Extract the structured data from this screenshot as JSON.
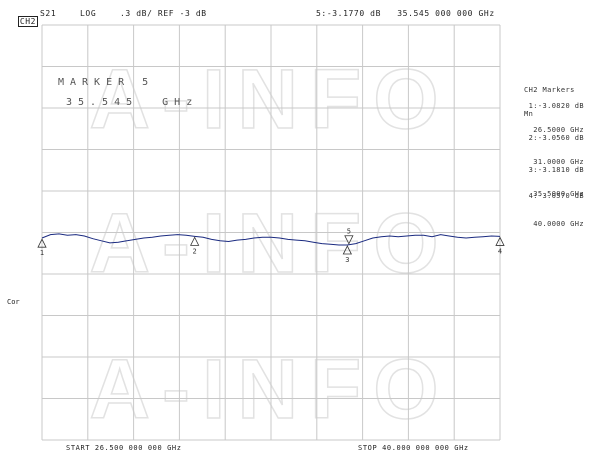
{
  "header": {
    "channel": "CH2",
    "param": "S21",
    "format": "LOG",
    "scale": ".3 dB/ REF -3 dB",
    "marker_readout": "5:-3.1770 dB   35.545 000 000 GHz"
  },
  "marker_label": {
    "title": "MARKER 5",
    "freq": "35.545  GHz"
  },
  "side_panel": {
    "title1": "CH2 Markers",
    "title2": "Mn",
    "markers": [
      {
        "line1": "1:-3.0820 dB",
        "line2": "26.5000 GHz"
      },
      {
        "line1": "2:-3.0560 dB",
        "line2": "31.0000 GHz"
      },
      {
        "line1": "3:-3.1810 dB",
        "line2": "35.5000 GHz"
      },
      {
        "line1": "4:-3.0570 dB",
        "line2": "40.0000 GHz"
      }
    ]
  },
  "left_label": "Cor",
  "footer": {
    "start": "START 26.500 000 000 GHz",
    "stop": "STOP 40.000 000 000 GHz"
  },
  "watermark": "A-INFO",
  "colors": {
    "trace": "#1a2a80",
    "grid": "#c8c8c8",
    "watermark": "#e2e2e2"
  },
  "chart_data": {
    "type": "line",
    "xlim": [
      26.5,
      40.0
    ],
    "ylim": [
      -6.0,
      0.0
    ],
    "ref_db": -3.0,
    "scale_db_per_div": 0.3,
    "grid": true,
    "x_unit": "GHz",
    "y_unit": "dB",
    "series": [
      {
        "x": [
          26.5,
          26.75,
          27.0,
          27.25,
          27.5,
          27.75,
          28.0,
          28.25,
          28.5,
          28.75,
          29.0,
          29.25,
          29.5,
          29.75,
          30.0,
          30.25,
          30.5,
          30.75,
          31.0,
          31.25,
          31.5,
          31.75,
          32.0,
          32.25,
          32.5,
          32.75,
          33.0,
          33.25,
          33.5,
          33.75,
          34.0,
          34.25,
          34.5,
          34.75,
          35.0,
          35.25,
          35.5,
          35.75,
          36.0,
          36.25,
          36.5,
          36.75,
          37.0,
          37.25,
          37.5,
          37.75,
          38.0,
          38.25,
          38.5,
          38.75,
          39.0,
          39.25,
          39.5,
          39.75,
          40.0
        ],
        "y": [
          -3.08,
          -3.03,
          -3.02,
          -3.04,
          -3.03,
          -3.05,
          -3.09,
          -3.12,
          -3.15,
          -3.14,
          -3.12,
          -3.1,
          -3.08,
          -3.07,
          -3.05,
          -3.04,
          -3.03,
          -3.04,
          -3.056,
          -3.07,
          -3.1,
          -3.12,
          -3.13,
          -3.11,
          -3.1,
          -3.08,
          -3.07,
          -3.07,
          -3.08,
          -3.1,
          -3.11,
          -3.12,
          -3.14,
          -3.16,
          -3.17,
          -3.18,
          -3.181,
          -3.16,
          -3.12,
          -3.08,
          -3.06,
          -3.05,
          -3.06,
          -3.05,
          -3.04,
          -3.04,
          -3.06,
          -3.03,
          -3.05,
          -3.07,
          -3.08,
          -3.07,
          -3.06,
          -3.05,
          -3.057
        ]
      }
    ],
    "markers": [
      {
        "id": "1",
        "x": 26.5,
        "y": -3.082,
        "label_pos": "below"
      },
      {
        "id": "2",
        "x": 31.0,
        "y": -3.056,
        "label_pos": "below"
      },
      {
        "id": "3",
        "x": 35.5,
        "y": -3.181,
        "label_pos": "below"
      },
      {
        "id": "4",
        "x": 40.0,
        "y": -3.057,
        "label_pos": "below"
      },
      {
        "id": "5",
        "x": 35.545,
        "y": -3.177,
        "label_pos": "above"
      }
    ]
  }
}
